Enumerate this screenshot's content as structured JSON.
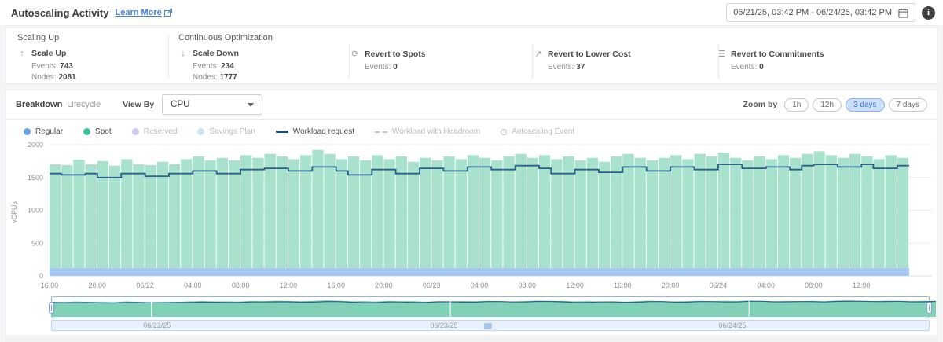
{
  "header": {
    "title": "Autoscaling Activity",
    "learn_more_label": "Learn More",
    "date_range": "06/21/25, 03:42 PM - 06/24/25, 03:42 PM",
    "info_glyph": "i"
  },
  "stats": {
    "events_label": "Events:",
    "nodes_label": "Nodes:",
    "groups": [
      {
        "title": "Scaling Up",
        "items": [
          {
            "icon": "arrow-up",
            "glyph": "↑",
            "label": "Scale Up",
            "events": "743",
            "nodes": "2081"
          }
        ]
      },
      {
        "title": "Continuous Optimization",
        "items": [
          {
            "icon": "arrow-down",
            "glyph": "↓",
            "label": "Scale Down",
            "events": "234",
            "nodes": "1777"
          },
          {
            "icon": "revert-spots",
            "glyph": "⟳",
            "label": "Revert to Spots",
            "events": "0"
          },
          {
            "icon": "revert-lower-cost",
            "glyph": "↗",
            "label": "Revert to Lower Cost",
            "events": "37"
          },
          {
            "icon": "revert-commitments",
            "glyph": "☰",
            "label": "Revert to Commitments",
            "events": "0"
          }
        ]
      }
    ]
  },
  "controls": {
    "tabs": [
      {
        "label": "Breakdown",
        "active": true
      },
      {
        "label": "Lifecycle",
        "active": false
      }
    ],
    "view_by_label": "View By",
    "view_by_value": "CPU",
    "zoom_by_label": "Zoom by",
    "zoom_options": [
      {
        "label": "1h",
        "active": false
      },
      {
        "label": "12h",
        "active": false
      },
      {
        "label": "3 days",
        "active": true
      },
      {
        "label": "7 days",
        "active": false
      }
    ]
  },
  "legend": {
    "items": [
      {
        "label": "Regular",
        "kind": "dot",
        "color": "#6aa5e8",
        "active": true
      },
      {
        "label": "Spot",
        "kind": "dot",
        "color": "#35c493",
        "active": true
      },
      {
        "label": "Reserved",
        "kind": "dot",
        "color": "#cfc9f0",
        "active": false
      },
      {
        "label": "Savings Plan",
        "kind": "dot",
        "color": "#c8e6f6",
        "active": false
      },
      {
        "label": "Workload request",
        "kind": "line",
        "color": "#1d4e7e",
        "active": true
      },
      {
        "label": "Workload with Headroom",
        "kind": "dash",
        "color": "#c4c4c4",
        "active": false
      },
      {
        "label": "Autoscaling Event",
        "kind": "ring",
        "color": "#c4c4c4",
        "active": false
      }
    ]
  },
  "chart_data": {
    "type": "area",
    "title": "Autoscaling Activity breakdown by CPU",
    "ylabel": "vCPUs",
    "ylim": [
      0,
      2000
    ],
    "yticks": [
      0,
      500,
      1000,
      1500,
      2000
    ],
    "x_tick_labels": [
      "16:00",
      "20:00",
      "06/22",
      "04:00",
      "08:00",
      "12:00",
      "16:00",
      "20:00",
      "06/23",
      "04:00",
      "08:00",
      "12:00",
      "16:00",
      "20:00",
      "06/24",
      "04:00",
      "08:00",
      "12:00"
    ],
    "grid": true,
    "legend_position": "top-left",
    "series": [
      {
        "name": "Regular",
        "type": "area-band",
        "color": "#a6c8f4",
        "constant_value": 120
      },
      {
        "name": "Spot",
        "type": "stepped-area",
        "color": "#a8e2cc",
        "values": [
          1700,
          1690,
          1770,
          1700,
          1750,
          1680,
          1780,
          1700,
          1690,
          1740,
          1700,
          1780,
          1820,
          1760,
          1800,
          1760,
          1840,
          1800,
          1860,
          1820,
          1780,
          1840,
          1920,
          1860,
          1780,
          1820,
          1760,
          1840,
          1780,
          1820,
          1740,
          1800,
          1760,
          1820,
          1780,
          1840,
          1800,
          1760,
          1820,
          1860,
          1800,
          1840,
          1780,
          1820,
          1760,
          1800,
          1740,
          1820,
          1860,
          1800,
          1760,
          1800,
          1840,
          1780,
          1860,
          1820,
          1880,
          1800,
          1760,
          1820,
          1780,
          1840,
          1800,
          1860,
          1900,
          1840,
          1800,
          1860,
          1820,
          1780,
          1840,
          1800
        ]
      },
      {
        "name": "Workload request",
        "type": "step-line",
        "color": "#2a618f",
        "values": [
          1560,
          1540,
          1540,
          1560,
          1500,
          1500,
          1560,
          1560,
          1520,
          1520,
          1560,
          1560,
          1600,
          1600,
          1560,
          1560,
          1620,
          1620,
          1640,
          1640,
          1600,
          1600,
          1660,
          1660,
          1600,
          1540,
          1540,
          1620,
          1620,
          1560,
          1560,
          1640,
          1640,
          1600,
          1600,
          1660,
          1660,
          1620,
          1620,
          1680,
          1680,
          1640,
          1560,
          1560,
          1620,
          1620,
          1580,
          1580,
          1660,
          1660,
          1600,
          1600,
          1660,
          1660,
          1620,
          1620,
          1700,
          1700,
          1640,
          1640,
          1660,
          1660,
          1620,
          1680,
          1700,
          1700,
          1660,
          1660,
          1700,
          1640,
          1640,
          1680
        ]
      }
    ],
    "navigator": {
      "day_boundary_indices": [
        8,
        32,
        56
      ],
      "track_dates": [
        "06/22/25",
        "06/23/25",
        "06/24/25"
      ],
      "track_date_positions_pct": [
        12,
        44.7,
        77.6
      ]
    }
  }
}
